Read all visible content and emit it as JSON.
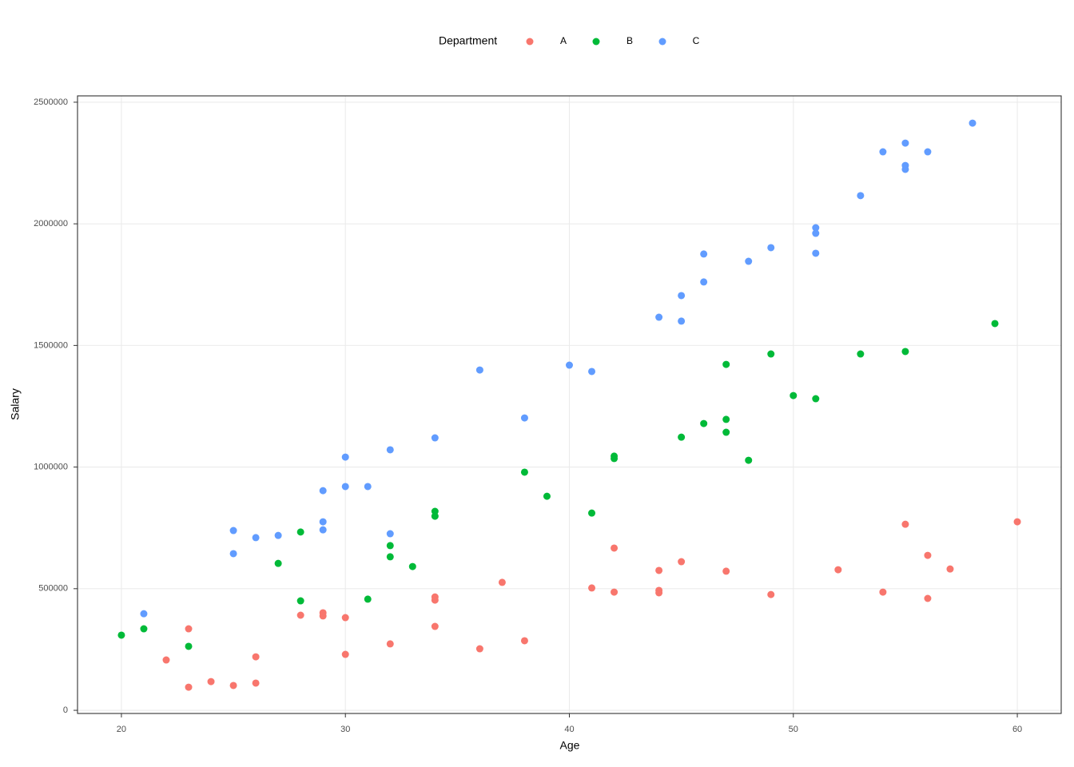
{
  "chart_data": {
    "type": "scatter",
    "x_label": "Age",
    "y_label": "Salary",
    "legend_title": "Department",
    "legend_position": "top",
    "grid": true,
    "xlim": [
      18.04,
      61.96
    ],
    "ylim": [
      -13000,
      2526000
    ],
    "xticks": [
      20,
      30,
      40,
      50,
      60
    ],
    "yticks": [
      0,
      500000,
      1000000,
      1500000,
      2000000,
      2500000
    ],
    "series": [
      {
        "name": "A",
        "color": "#F8766D",
        "x": [
          22,
          23,
          23,
          24,
          25,
          26,
          26,
          28,
          29,
          29,
          30,
          30,
          32,
          34,
          34,
          34,
          36,
          37,
          38,
          41,
          42,
          42,
          44,
          44,
          44,
          45,
          47,
          49,
          52,
          54,
          55,
          56,
          56,
          57,
          60
        ],
        "y": [
          207000,
          95000,
          335000,
          118000,
          102000,
          112000,
          220000,
          391000,
          401000,
          388000,
          381000,
          230000,
          273000,
          466000,
          453000,
          345000,
          253000,
          526000,
          286000,
          503000,
          667000,
          486000,
          575000,
          493000,
          483000,
          611000,
          572000,
          476000,
          578000,
          486000,
          765000,
          637000,
          460000,
          581000,
          775000
        ]
      },
      {
        "name": "B",
        "color": "#00BA38",
        "x": [
          20,
          21,
          23,
          27,
          28,
          28,
          31,
          32,
          32,
          33,
          34,
          34,
          38,
          39,
          41,
          42,
          42,
          45,
          46,
          47,
          47,
          47,
          48,
          49,
          50,
          51,
          53,
          55,
          59
        ],
        "y": [
          309000,
          335000,
          263000,
          604000,
          733000,
          450000,
          457000,
          677000,
          631000,
          591000,
          818000,
          798000,
          979000,
          880000,
          811000,
          1045000,
          1035000,
          1123000,
          1179000,
          1196000,
          1143000,
          1422000,
          1028000,
          1465000,
          1294000,
          1281000,
          1465000,
          1475000,
          1590000
        ]
      },
      {
        "name": "C",
        "color": "#619CFF",
        "x": [
          21,
          25,
          25,
          26,
          27,
          29,
          29,
          29,
          30,
          30,
          31,
          32,
          32,
          34,
          36,
          38,
          40,
          41,
          44,
          45,
          45,
          46,
          46,
          48,
          49,
          51,
          51,
          51,
          53,
          54,
          55,
          55,
          55,
          56,
          58
        ],
        "y": [
          397000,
          739000,
          644000,
          710000,
          719000,
          903000,
          775000,
          742000,
          1041000,
          920000,
          920000,
          1071000,
          726000,
          1120000,
          1399000,
          1202000,
          1419000,
          1393000,
          1616000,
          1705000,
          1600000,
          1876000,
          1761000,
          1846000,
          1902000,
          1984000,
          1961000,
          1879000,
          2116000,
          2296000,
          2332000,
          2240000,
          2224000,
          2296000,
          2414000
        ]
      }
    ]
  }
}
